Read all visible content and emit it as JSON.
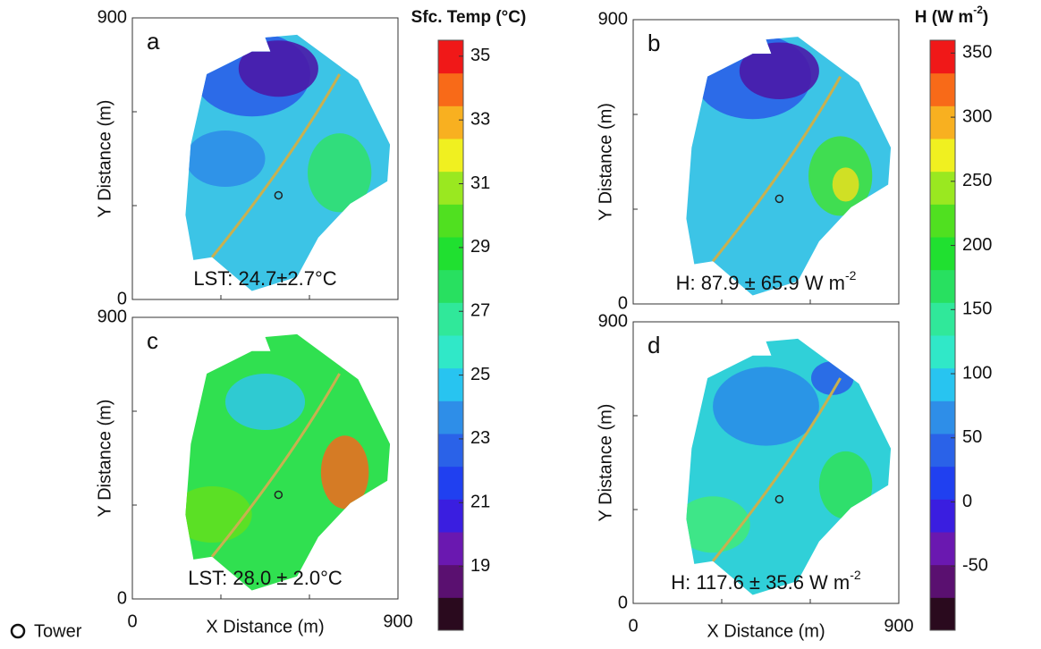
{
  "figure": {
    "axes": {
      "xlabel": "X Distance (m)",
      "ylabel": "Y Distance (m)",
      "xlim": [
        0,
        900
      ],
      "ylim": [
        0,
        900
      ],
      "labeled_ticks": [
        0,
        900
      ],
      "minor_ticks": [
        300,
        600
      ]
    },
    "panels": [
      {
        "letter": "a",
        "annotation": "LST: 24.7±2.7°C",
        "colorbar": 0
      },
      {
        "letter": "b",
        "annotation": "H: 87.9 ± 65.9 W m",
        "annotation_sup": "-2",
        "colorbar": 1
      },
      {
        "letter": "c",
        "annotation": "LST: 28.0 ± 2.0°C",
        "colorbar": 0
      },
      {
        "letter": "d",
        "annotation": "H: 117.6 ± 35.6 W m",
        "annotation_sup": "-2",
        "colorbar": 1
      }
    ],
    "colorbars": [
      {
        "title": "Sfc. Temp (°C)",
        "lim": [
          17,
          35.5
        ],
        "ticks": [
          19,
          21,
          23,
          25,
          27,
          29,
          31,
          33,
          35
        ]
      },
      {
        "title": "H (W m",
        "title_sup": "-2",
        "title_end": ")",
        "lim": [
          -100,
          360
        ],
        "ticks": [
          -50,
          0,
          50,
          100,
          150,
          200,
          250,
          300,
          350
        ]
      }
    ],
    "colors": [
      "#2a0a1e",
      "#5a1070",
      "#6a18b0",
      "#3a1ee0",
      "#2040f0",
      "#2a62e8",
      "#2e8ee8",
      "#28c4f0",
      "#30e8c8",
      "#30e89a",
      "#28e060",
      "#20e030",
      "#50e020",
      "#9ae820",
      "#f0f020",
      "#f8b020",
      "#f86a18",
      "#f01818"
    ],
    "legend": "Tower"
  }
}
